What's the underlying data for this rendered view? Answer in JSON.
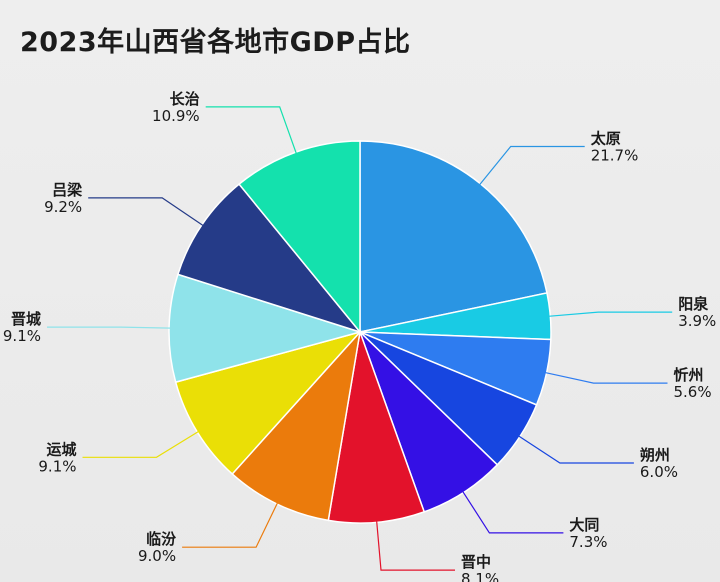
{
  "chart_data": {
    "type": "pie",
    "title": "2023年山西省各地市GDP占比",
    "unit": "%",
    "start": "12 o'clock, clockwise",
    "slices": [
      {
        "label": "太原",
        "value": 21.7,
        "display": "21.7%",
        "color": "#2a95e3",
        "label_side": "right"
      },
      {
        "label": "阳泉",
        "value": 3.9,
        "display": "3.9%",
        "color": "#19cbe4",
        "label_side": "right"
      },
      {
        "label": "忻州",
        "value": 5.6,
        "display": "5.6%",
        "color": "#2e7cf0",
        "label_side": "right"
      },
      {
        "label": "朔州",
        "value": 6.0,
        "display": "6.0%",
        "color": "#1746e0",
        "label_side": "right"
      },
      {
        "label": "大同",
        "value": 7.3,
        "display": "7.3%",
        "color": "#3410e5",
        "label_side": "right"
      },
      {
        "label": "晋中",
        "value": 8.1,
        "display": "8.1%",
        "color": "#e3122b",
        "label_side": "right"
      },
      {
        "label": "临汾",
        "value": 9.0,
        "display": "9.0%",
        "color": "#eb7b0c",
        "label_side": "left"
      },
      {
        "label": "运城",
        "value": 9.1,
        "display": "9.1%",
        "color": "#eadf06",
        "label_side": "left"
      },
      {
        "label": "晋城",
        "value": 9.1,
        "display": "9.1%",
        "color": "#8fe3ea",
        "label_side": "left"
      },
      {
        "label": "吕梁",
        "value": 9.2,
        "display": "9.2%",
        "color": "#253b88",
        "label_side": "left"
      },
      {
        "label": "长治",
        "value": 10.9,
        "display": "10.9%",
        "color": "#14e1ad",
        "label_side": "left"
      }
    ]
  }
}
